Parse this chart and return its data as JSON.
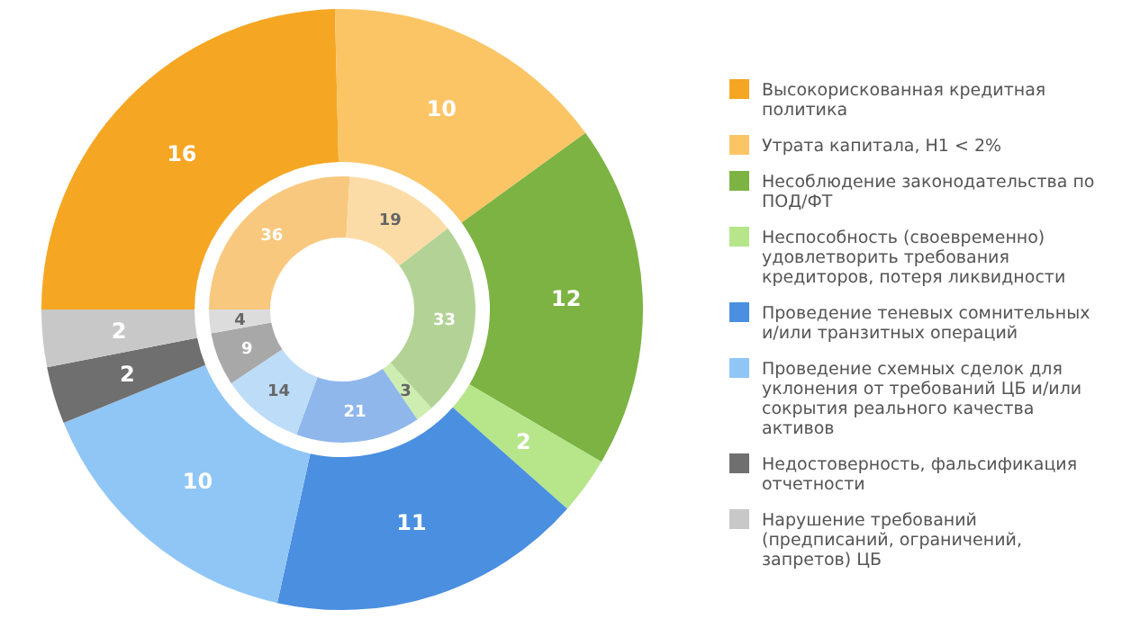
{
  "chart_data": {
    "type": "donut",
    "categories": [
      "Высокорискованная кредитная политика",
      "Утрата капитала, Н1 < 2%",
      "Несоблюдение законодательства по ПОД/ФТ",
      "Неспособность (своевременно) удовлетворить требования кредиторов, потеря ликвидности",
      "Проведение теневых сомнительных и/или транзитных операций",
      "Проведение схемных сделок для уклонения от требований ЦБ и/или сокрытия реального качества активов",
      "Недостоверность, фальсификация отчетности",
      "Нарушение требований (предписаний, ограничений, запретов) ЦБ"
    ],
    "series": [
      {
        "values": [
          16,
          10,
          12,
          2,
          11,
          10,
          2,
          2
        ],
        "colors": [
          "#f5a623",
          "#fbc566",
          "#7cb342",
          "#b6e58a",
          "#4a8fe0",
          "#90c6f6",
          "#6f6f6f",
          "#c8c8c8"
        ]
      },
      {
        "values": [
          36,
          19,
          33,
          3,
          21,
          14,
          9,
          4
        ],
        "colors": [
          "#f8c87e",
          "#fcdca6",
          "#b3d396",
          "#cdeeb0",
          "#8fb7ec",
          "#bcdcf8",
          "#a8a8a8",
          "#dcdcdc"
        ]
      }
    ],
    "data_labels": true,
    "legend": "right"
  }
}
